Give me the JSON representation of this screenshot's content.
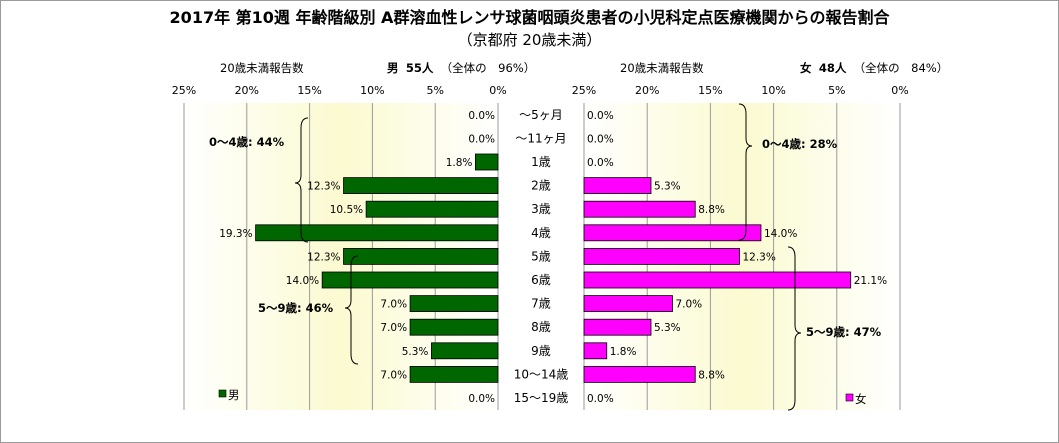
{
  "title": "2017年 第10週 年齢階級別 A群溶血性レンサ球菌咽頭炎患者の小児科定点医療機関からの報告割合",
  "subtitle": "（京都府 20歳未満）",
  "male_header": {
    "caption": "20歳未満報告数",
    "sex": "男",
    "count": "55人",
    "share": "（全体の　96%）"
  },
  "female_header": {
    "caption": "20歳未満報告数",
    "sex": "女",
    "count": "48人",
    "share": "（全体の　84%）"
  },
  "annotations": {
    "male_0_4": "0～4歳: 44%",
    "male_5_9": "5～9歳: 46%",
    "female_0_4": "0～4歳: 28%",
    "female_5_9": "5～9歳: 47%"
  },
  "colors": {
    "male": "#006600",
    "female": "#ff00ff",
    "bg_center": "#fbfad0",
    "bg_edge": "#ffffff"
  },
  "chart_data": {
    "type": "bar",
    "orientation": "horizontal-butterfly",
    "categories": [
      "～5ヶ月",
      "～11ヶ月",
      "1歳",
      "2歳",
      "3歳",
      "4歳",
      "5歳",
      "6歳",
      "7歳",
      "8歳",
      "9歳",
      "10～14歳",
      "15～19歳"
    ],
    "series": [
      {
        "name": "男",
        "values": [
          0.0,
          0.0,
          1.8,
          12.3,
          10.5,
          19.3,
          12.3,
          14.0,
          7.0,
          7.0,
          5.3,
          7.0,
          0.0
        ],
        "labels": [
          "0.0%",
          "0.0%",
          "1.8%",
          "12.3%",
          "10.5%",
          "19.3%",
          "12.3%",
          "14.0%",
          "7.0%",
          "7.0%",
          "5.3%",
          "7.0%",
          "0.0%"
        ]
      },
      {
        "name": "女",
        "values": [
          0.0,
          0.0,
          0.0,
          5.3,
          8.8,
          14.0,
          12.3,
          21.1,
          7.0,
          5.3,
          1.8,
          8.8,
          0.0
        ],
        "labels": [
          "0.0%",
          "0.0%",
          "0.0%",
          "5.3%",
          "8.8%",
          "14.0%",
          "12.3%",
          "21.1%",
          "7.0%",
          "5.3%",
          "1.8%",
          "8.8%",
          "0.0%"
        ]
      }
    ],
    "xlim": [
      0,
      25
    ],
    "tick_values": [
      25,
      20,
      15,
      10,
      5,
      0
    ],
    "tick_labels": [
      "25%",
      "20%",
      "15%",
      "10%",
      "5%",
      "0%"
    ],
    "grid": true,
    "legend_position": "bottom-inside"
  }
}
